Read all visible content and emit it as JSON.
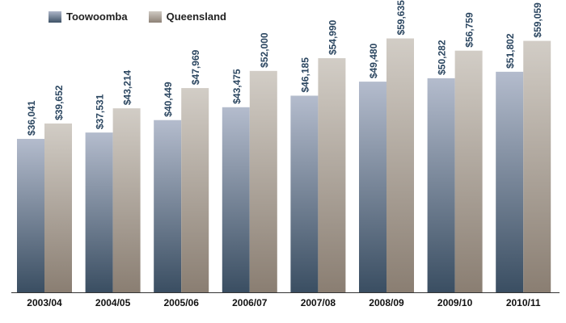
{
  "chart_data": {
    "type": "bar",
    "categories": [
      "2003/04",
      "2004/05",
      "2005/06",
      "2006/07",
      "2007/08",
      "2008/09",
      "2009/10",
      "2010/11"
    ],
    "series": [
      {
        "name": "Toowoomba",
        "values": [
          36041,
          37531,
          40449,
          43475,
          46185,
          49480,
          50282,
          51802
        ],
        "labels": [
          "$36,041",
          "$37,531",
          "$40,449",
          "$43,475",
          "$46,185",
          "$49,480",
          "$50,282",
          "$51,802"
        ],
        "color_top": "#b4bccd",
        "color_bottom": "#3a4e62"
      },
      {
        "name": "Queensland",
        "values": [
          39652,
          43214,
          47969,
          52000,
          54990,
          59635,
          56759,
          59059
        ],
        "labels": [
          "$39,652",
          "$43,214",
          "$47,969",
          "$52,000",
          "$54,990",
          "$59,635",
          "$56,759",
          "$59,059"
        ],
        "color_top": "#d2cdc6",
        "color_bottom": "#8a7e72"
      }
    ],
    "ylim": [
      0,
      66000
    ],
    "legend": "top-left",
    "grid": false,
    "label_color": "#2b4660"
  }
}
